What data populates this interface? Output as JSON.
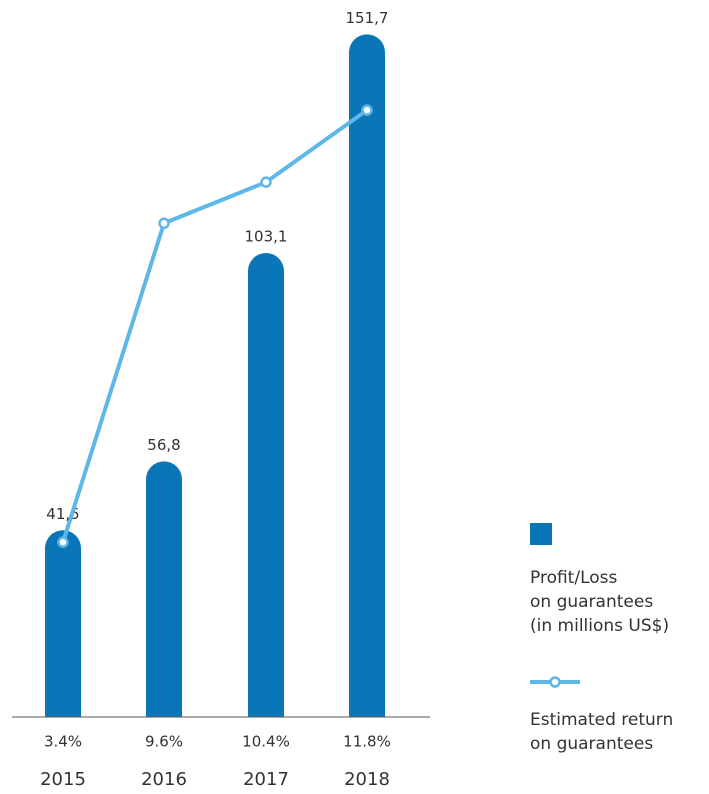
{
  "chart_data": {
    "type": "bar-line",
    "categories": [
      "2015",
      "2016",
      "2017",
      "2018"
    ],
    "series": [
      {
        "name": "Profit/Loss\non guarantees\n(in millions US$)",
        "type": "bar",
        "color": "#0a76b8",
        "values": [
          41.5,
          56.8,
          103.1,
          151.7
        ],
        "value_labels": [
          "41,5",
          "56,8",
          "103,1",
          "151,7"
        ]
      },
      {
        "name": "Estimated return\non guarantees",
        "type": "line",
        "axis": "y2",
        "color": "#5db7e8",
        "values": [
          3.4,
          9.6,
          10.4,
          11.8
        ],
        "value_labels": [
          "3.4%",
          "9.6%",
          "10.4%",
          "11.8%"
        ]
      }
    ],
    "ylim": [
      0,
      160
    ],
    "y2lim": [
      0,
      14
    ],
    "legend": "right"
  }
}
